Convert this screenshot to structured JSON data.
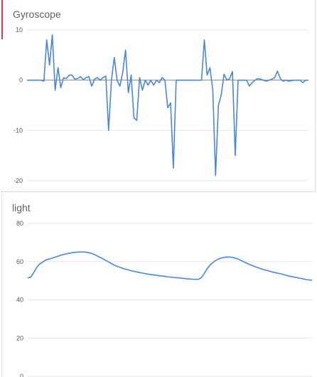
{
  "colors": {
    "accent": "#d23a45",
    "line": "#4a86d8"
  },
  "chart_data": [
    {
      "type": "line",
      "title": "Gyroscope",
      "ylim": [
        -20,
        10
      ],
      "yticks": [
        10,
        0,
        -10,
        -20
      ],
      "xlim": [
        0,
        100
      ],
      "grid": true,
      "series": [
        {
          "values": [
            [
              0,
              0
            ],
            [
              3,
              0
            ],
            [
              5,
              0
            ],
            [
              6,
              -0.2
            ],
            [
              7,
              8
            ],
            [
              8,
              3
            ],
            [
              9,
              9
            ],
            [
              10,
              -2
            ],
            [
              11,
              2.5
            ],
            [
              12,
              -1.5
            ],
            [
              13,
              0.5
            ],
            [
              14,
              0.3
            ],
            [
              15,
              1
            ],
            [
              16,
              1
            ],
            [
              17,
              0.2
            ],
            [
              18,
              0.3
            ],
            [
              19,
              0.7
            ],
            [
              20,
              0.1
            ],
            [
              21,
              0.5
            ],
            [
              22,
              0.7
            ],
            [
              23,
              -1.2
            ],
            [
              24,
              0.2
            ],
            [
              25,
              0.5
            ],
            [
              26,
              0
            ],
            [
              27,
              0.5
            ],
            [
              28,
              0.8
            ],
            [
              29,
              -10
            ],
            [
              30,
              0
            ],
            [
              31,
              4.5
            ],
            [
              32,
              0
            ],
            [
              33,
              -1.2
            ],
            [
              34,
              1.5
            ],
            [
              35,
              6
            ],
            [
              36,
              -2.5
            ],
            [
              37,
              1
            ],
            [
              38,
              -7.5
            ],
            [
              39,
              -8
            ],
            [
              40,
              0.5
            ],
            [
              41,
              -2
            ],
            [
              42,
              0
            ],
            [
              43,
              -1
            ],
            [
              44,
              0
            ],
            [
              45,
              -1
            ],
            [
              46,
              0
            ],
            [
              47,
              -0.5
            ],
            [
              48,
              0.5
            ],
            [
              49,
              0
            ],
            [
              50,
              -5.5
            ],
            [
              51,
              -4.5
            ],
            [
              52,
              -17.5
            ],
            [
              53,
              0
            ],
            [
              56,
              0
            ],
            [
              60,
              0
            ],
            [
              62,
              0
            ],
            [
              63,
              8
            ],
            [
              64,
              1
            ],
            [
              65,
              2.5
            ],
            [
              66,
              -2
            ],
            [
              67,
              -19
            ],
            [
              68,
              -5
            ],
            [
              69,
              -3
            ],
            [
              70,
              1.2
            ],
            [
              71,
              0
            ],
            [
              72,
              0.3
            ],
            [
              73,
              1.7
            ],
            [
              74,
              -15
            ],
            [
              75,
              0
            ],
            [
              78,
              0
            ],
            [
              79,
              -1.2
            ],
            [
              80,
              -0.5
            ],
            [
              81,
              0
            ],
            [
              82,
              0.3
            ],
            [
              83,
              0.2
            ],
            [
              84,
              0
            ],
            [
              85,
              -0.2
            ],
            [
              86,
              0
            ],
            [
              87,
              0.2
            ],
            [
              88,
              0.5
            ],
            [
              89,
              1.8
            ],
            [
              90,
              0.3
            ],
            [
              91,
              -0.2
            ],
            [
              92,
              0
            ],
            [
              93,
              -0.2
            ],
            [
              95,
              0
            ],
            [
              97,
              0
            ],
            [
              98,
              -0.5
            ],
            [
              99,
              0
            ],
            [
              100,
              0
            ]
          ]
        }
      ]
    },
    {
      "type": "line",
      "title": "light",
      "ylim": [
        0,
        80
      ],
      "yticks": [
        80,
        60,
        40,
        20,
        0
      ],
      "xlim": [
        0,
        100
      ],
      "grid": true,
      "series": [
        {
          "values": [
            [
              0,
              51.5
            ],
            [
              1,
              51.8
            ],
            [
              2,
              54
            ],
            [
              3,
              56.5
            ],
            [
              4,
              58.5
            ],
            [
              5,
              59.5
            ],
            [
              6,
              60.5
            ],
            [
              7,
              61.2
            ],
            [
              8,
              61.5
            ],
            [
              9,
              62
            ],
            [
              10,
              62.5
            ],
            [
              11,
              63
            ],
            [
              12,
              63.5
            ],
            [
              13,
              63.8
            ],
            [
              14,
              64.2
            ],
            [
              15,
              64.5
            ],
            [
              16,
              64.7
            ],
            [
              17,
              64.9
            ],
            [
              18,
              65
            ],
            [
              19,
              65
            ],
            [
              20,
              65
            ],
            [
              21,
              64.8
            ],
            [
              22,
              64.5
            ],
            [
              23,
              64
            ],
            [
              24,
              63.3
            ],
            [
              25,
              62.5
            ],
            [
              26,
              61.8
            ],
            [
              27,
              61
            ],
            [
              28,
              60.2
            ],
            [
              29,
              59.3
            ],
            [
              30,
              58.5
            ],
            [
              31,
              57.8
            ],
            [
              32,
              57.2
            ],
            [
              33,
              56.7
            ],
            [
              34,
              56.2
            ],
            [
              35,
              55.8
            ],
            [
              36,
              55.4
            ],
            [
              37,
              55
            ],
            [
              38,
              54.7
            ],
            [
              39,
              54.4
            ],
            [
              40,
              54.1
            ],
            [
              41,
              53.8
            ],
            [
              42,
              53.5
            ],
            [
              43,
              53.3
            ],
            [
              44,
              53.1
            ],
            [
              45,
              52.9
            ],
            [
              46,
              52.7
            ],
            [
              47,
              52.5
            ],
            [
              48,
              52.3
            ],
            [
              49,
              52.1
            ],
            [
              50,
              51.9
            ],
            [
              51,
              51.8
            ],
            [
              52,
              51.6
            ],
            [
              53,
              51.5
            ],
            [
              54,
              51.3
            ],
            [
              55,
              51.2
            ],
            [
              56,
              51
            ],
            [
              57,
              50.9
            ],
            [
              58,
              50.8
            ],
            [
              59,
              50.7
            ],
            [
              60,
              50.7
            ],
            [
              61,
              51.5
            ],
            [
              62,
              53.5
            ],
            [
              63,
              56
            ],
            [
              64,
              58
            ],
            [
              65,
              59.3
            ],
            [
              66,
              60.5
            ],
            [
              67,
              61.3
            ],
            [
              68,
              61.8
            ],
            [
              69,
              62.2
            ],
            [
              70,
              62.4
            ],
            [
              71,
              62.4
            ],
            [
              72,
              62.2
            ],
            [
              73,
              61.8
            ],
            [
              74,
              61.3
            ],
            [
              75,
              60.6
            ],
            [
              76,
              59.9
            ],
            [
              77,
              59.2
            ],
            [
              78,
              58.5
            ],
            [
              79,
              57.9
            ],
            [
              80,
              57.3
            ],
            [
              81,
              56.8
            ],
            [
              82,
              56.3
            ],
            [
              83,
              55.8
            ],
            [
              84,
              55.4
            ],
            [
              85,
              55
            ],
            [
              86,
              54.6
            ],
            [
              87,
              54.2
            ],
            [
              88,
              53.9
            ],
            [
              89,
              53.6
            ],
            [
              90,
              53.2
            ],
            [
              91,
              52.8
            ],
            [
              92,
              52.4
            ],
            [
              93,
              52.1
            ],
            [
              94,
              51.8
            ],
            [
              95,
              51.5
            ],
            [
              96,
              51.2
            ],
            [
              97,
              50.9
            ],
            [
              98,
              50.6
            ],
            [
              100,
              50.2
            ]
          ]
        }
      ]
    }
  ]
}
